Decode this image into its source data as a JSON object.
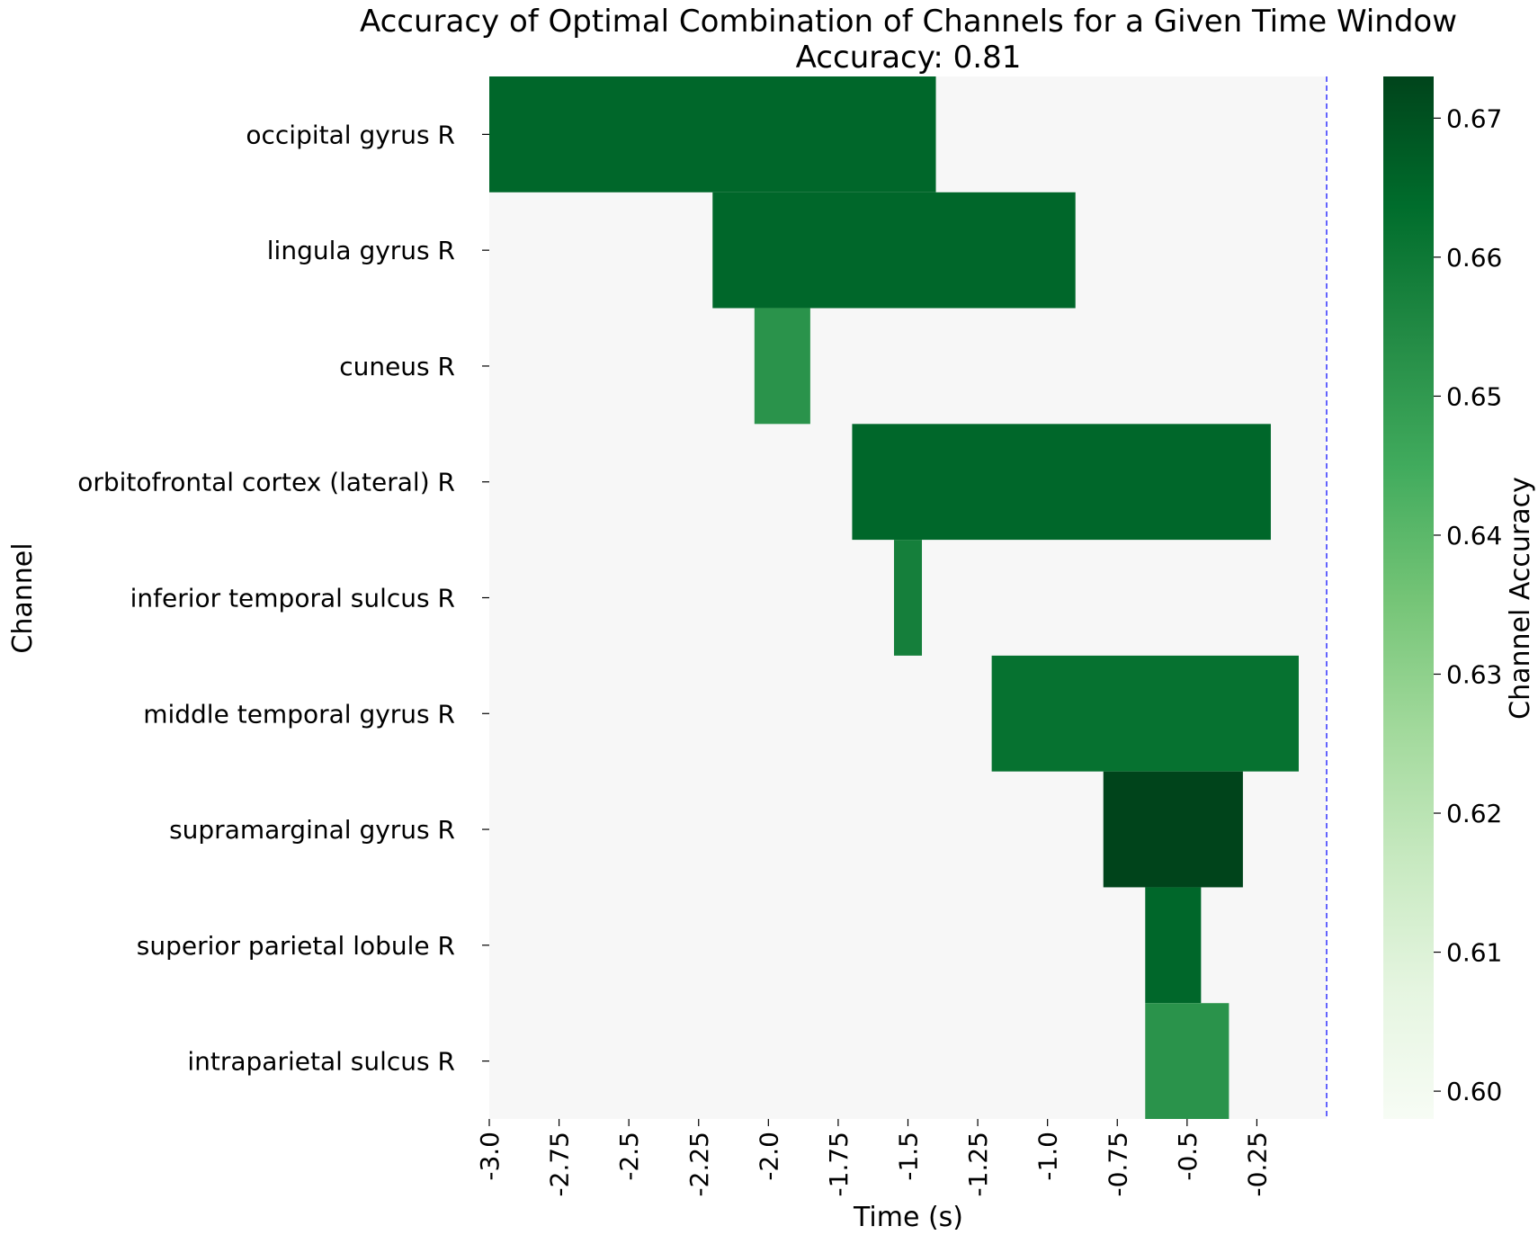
{
  "chart_data": {
    "type": "heatmap",
    "title": "Accuracy of Optimal Combination of Channels for a Given Time Window",
    "subtitle": "Accuracy: 0.81",
    "xlabel": "Time (s)",
    "ylabel": "Channel",
    "colorbar_label": "Channel Accuracy",
    "xlim": [
      -3.0,
      0.0
    ],
    "x_ticks": [
      -3.0,
      -2.75,
      -2.5,
      -2.25,
      -2.0,
      -1.75,
      -1.5,
      -1.25,
      -1.0,
      -0.75,
      -0.5,
      -0.25
    ],
    "x_tick_labels": [
      "-3.0",
      "-2.75",
      "-2.5",
      "-2.25",
      "-2.0",
      "-1.75",
      "-1.5",
      "-1.25",
      "-1.0",
      "-0.75",
      "-0.5",
      "-0.25"
    ],
    "channels": [
      "occipital gyrus R",
      "lingula gyrus R",
      "cuneus R",
      "orbitofrontal cortex (lateral) R",
      "inferior temporal sulcus R",
      "middle temporal gyrus R",
      "supramarginal gyrus R",
      "superior parietal lobule R",
      "intraparietal sulcus R"
    ],
    "windows": [
      {
        "channel": "occipital gyrus R",
        "start": -3.0,
        "end": -1.4,
        "accuracy": 0.665
      },
      {
        "channel": "lingula gyrus R",
        "start": -2.2,
        "end": -0.9,
        "accuracy": 0.665
      },
      {
        "channel": "cuneus R",
        "start": -2.05,
        "end": -1.85,
        "accuracy": 0.652
      },
      {
        "channel": "orbitofrontal cortex (lateral) R",
        "start": -1.7,
        "end": -0.2,
        "accuracy": 0.665
      },
      {
        "channel": "inferior temporal sulcus R",
        "start": -1.55,
        "end": -1.45,
        "accuracy": 0.658
      },
      {
        "channel": "middle temporal gyrus R",
        "start": -1.2,
        "end": -0.1,
        "accuracy": 0.662
      },
      {
        "channel": "supramarginal gyrus R",
        "start": -0.8,
        "end": -0.3,
        "accuracy": 0.673
      },
      {
        "channel": "superior parietal lobule R",
        "start": -0.65,
        "end": -0.45,
        "accuracy": 0.665
      },
      {
        "channel": "intraparietal sulcus R",
        "start": -0.65,
        "end": -0.35,
        "accuracy": 0.652
      }
    ],
    "background_color": "#f7f7f7",
    "reference_line": {
      "x": 0.0,
      "color": "#0000ff",
      "style": "dashed"
    },
    "colorbar": {
      "min": 0.598,
      "max": 0.673,
      "ticks": [
        0.6,
        0.61,
        0.62,
        0.63,
        0.64,
        0.65,
        0.66,
        0.67
      ],
      "tick_labels": [
        "0.60",
        "0.61",
        "0.62",
        "0.63",
        "0.64",
        "0.65",
        "0.66",
        "0.67"
      ],
      "colormap": "Greens",
      "color_stops": [
        "#f7fcf5",
        "#e5f5e0",
        "#c7e9c0",
        "#a1d99b",
        "#74c476",
        "#41ab5d",
        "#238b45",
        "#006d2c",
        "#00441b"
      ]
    },
    "grid": false
  }
}
